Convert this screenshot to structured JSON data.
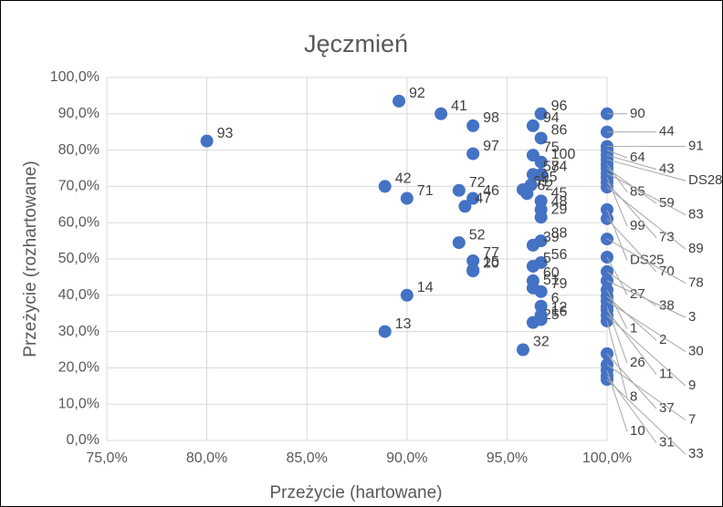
{
  "chart_data": {
    "type": "scatter",
    "title": "Jęczmień",
    "x_label": "Przeżycie (hartowane)",
    "y_label": "Przeżycie (rozhartowane)",
    "xlim": [
      75,
      100
    ],
    "ylim": [
      0,
      100
    ],
    "xticks": [
      {
        "value": 75,
        "label": "75,0%"
      },
      {
        "value": 80,
        "label": "80,0%"
      },
      {
        "value": 85,
        "label": "85,0%"
      },
      {
        "value": 90,
        "label": "90,0%"
      },
      {
        "value": 95,
        "label": "95,0%"
      },
      {
        "value": 100,
        "label": "100,0%"
      }
    ],
    "yticks": [
      {
        "value": 0,
        "label": "0,0%"
      },
      {
        "value": 10,
        "label": "10,0%"
      },
      {
        "value": 20,
        "label": "20,0%"
      },
      {
        "value": 30,
        "label": "30,0%"
      },
      {
        "value": 40,
        "label": "40,0%"
      },
      {
        "value": 50,
        "label": "50,0%"
      },
      {
        "value": 60,
        "label": "60,0%"
      },
      {
        "value": 70,
        "label": "70,0%"
      },
      {
        "value": 80,
        "label": "80,0%"
      },
      {
        "value": 90,
        "label": "90,0%"
      },
      {
        "value": 100,
        "label": "100,0%"
      }
    ],
    "grid": true,
    "x": [
      80.0,
      89.6,
      91.7,
      93.3,
      93.3,
      88.9,
      90.0,
      92.6,
      93.3,
      92.9,
      92.6,
      93.3,
      93.3,
      93.3,
      90.0,
      88.9,
      95.8,
      96.7,
      96.3,
      96.7,
      96.3,
      96.7,
      96.7,
      96.3,
      95.8,
      96.2,
      96.0,
      96.7,
      96.7,
      96.7,
      96.7,
      96.3,
      96.7,
      96.3,
      96.3,
      96.3,
      96.7,
      96.7,
      96.7,
      96.3,
      96.7,
      100,
      100,
      100,
      100,
      100,
      100,
      100,
      100,
      100,
      100,
      100,
      100,
      100,
      100,
      100,
      100,
      100,
      100,
      100,
      100,
      100,
      100,
      100,
      100,
      100,
      100,
      100,
      100,
      100,
      100
    ],
    "series": [
      {
        "color": "#4472c4",
        "values": [
          82.5,
          93.5,
          90.0,
          86.7,
          79.0,
          70.0,
          66.7,
          68.9,
          66.7,
          64.5,
          54.5,
          49.5,
          47.0,
          46.7,
          40.0,
          30.0,
          25.0,
          90.0,
          86.7,
          83.3,
          78.6,
          76.7,
          73.3,
          73.3,
          69.1,
          70.4,
          68.0,
          66.0,
          63.6,
          61.5,
          55.0,
          53.8,
          49.0,
          48.0,
          44.0,
          42.0,
          41.0,
          37.0,
          33.3,
          32.5,
          34.5,
          90.0,
          85.0,
          81.0,
          80.0,
          78.6,
          77.4,
          76.1,
          75.0,
          73.6,
          72.4,
          71.1,
          69.8,
          63.6,
          61.1,
          55.5,
          50.5,
          46.5,
          44.0,
          41.5,
          39.7,
          38.4,
          36.9,
          35.9,
          34.4,
          32.9,
          23.9,
          20.9,
          19.3,
          17.8,
          16.8
        ],
        "labels": [
          "93",
          "92",
          "41",
          "98",
          "97",
          "42",
          "71",
          "72",
          "46",
          "47",
          "52",
          "77",
          "15",
          "20",
          "14",
          "13",
          "32",
          "96",
          "94",
          "86",
          "75",
          "100",
          "74",
          "58",
          "61",
          "95",
          "62",
          "45",
          "48",
          "29",
          "88",
          "39",
          "56",
          "5",
          "60",
          "51",
          "79",
          "6",
          "16",
          "25",
          "12",
          "90",
          "44",
          "91",
          "64",
          "43",
          "DS28",
          "85",
          "59",
          "83",
          "99",
          "73",
          "89",
          "DS25",
          "70",
          "78",
          "27",
          "38",
          "3",
          "1",
          "2",
          "30",
          "26",
          "11",
          "9",
          "8",
          "37",
          "7",
          "10",
          "31",
          "33"
        ]
      }
    ]
  }
}
